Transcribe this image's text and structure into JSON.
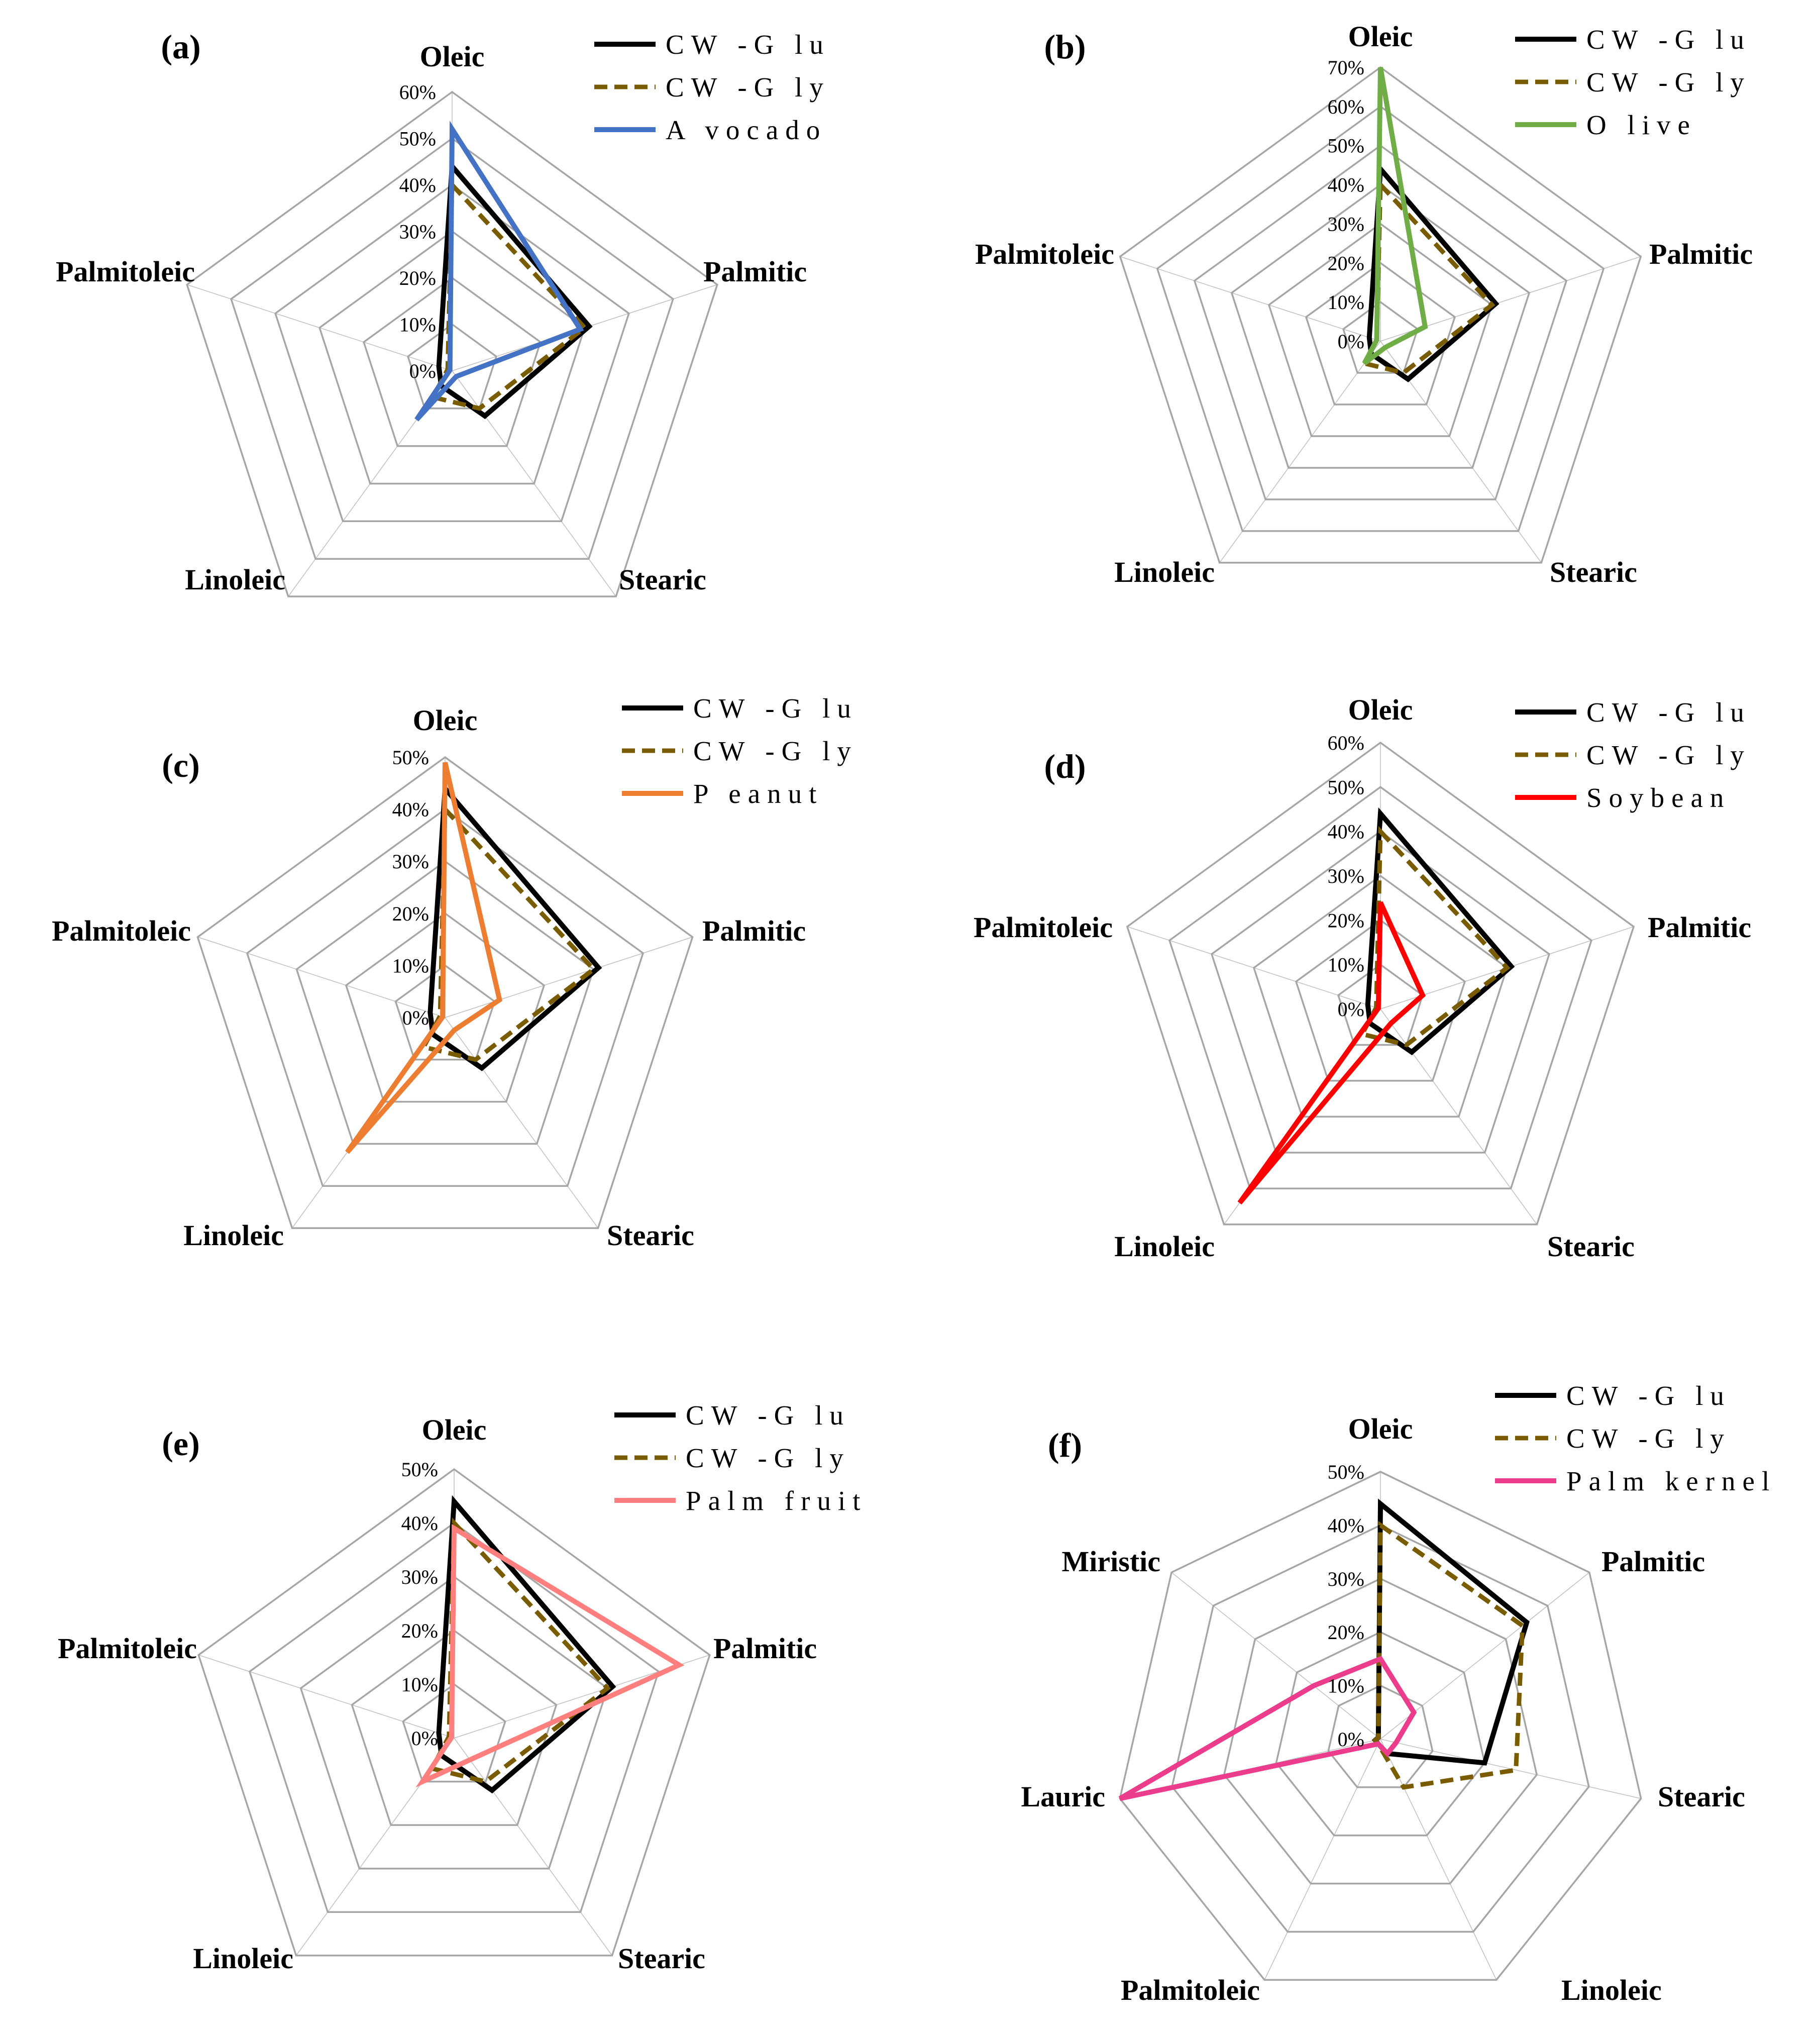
{
  "figure": {
    "panels": [
      {
        "panel_label": "(a)",
        "legend": [
          "CW -G lu",
          "CW -G ly",
          "A vocado"
        ],
        "colors": {
          "CW -G lu": "#000000",
          "CW -G ly": "#7a5c00",
          "A vocado": "#4472c4"
        }
      },
      {
        "panel_label": "(b)",
        "legend": [
          "CW -G lu",
          "CW -G ly",
          "O live"
        ],
        "colors": {
          "CW -G lu": "#000000",
          "CW -G ly": "#7a5c00",
          "O live": "#70ad47"
        }
      },
      {
        "panel_label": "(c)",
        "legend": [
          "CW -G lu",
          "CW -G ly",
          "P eanut"
        ],
        "colors": {
          "CW -G lu": "#000000",
          "CW -G ly": "#7a5c00",
          "P eanut": "#ed7d31"
        }
      },
      {
        "panel_label": "(d)",
        "legend": [
          "CW -G lu",
          "CW -G ly",
          "Soybean"
        ],
        "colors": {
          "CW -G lu": "#000000",
          "CW -G ly": "#7a5c00",
          "Soybean": "#ff0000"
        }
      },
      {
        "panel_label": "(e)",
        "legend": [
          "CW -G lu",
          "CW -G ly",
          "Palm fruit"
        ],
        "colors": {
          "CW -G lu": "#000000",
          "CW -G ly": "#7a5c00",
          "Palm fruit": "#ff7f7f"
        }
      },
      {
        "panel_label": "(f)",
        "legend": [
          "CW -G lu",
          "CW -G ly",
          "Palm kernel"
        ],
        "colors": {
          "CW -G lu": "#000000",
          "CW -G ly": "#7a5c00",
          "Palm kernel": "#ec3c8c"
        }
      }
    ]
  },
  "chart_data": [
    {
      "type": "radar",
      "axes": [
        "Oleic",
        "Palmitic",
        "Stearic",
        "Linoleic",
        "Palmitoleic"
      ],
      "ticks": [
        "0%",
        "10%",
        "20%",
        "30%",
        "40%",
        "50%",
        "60%"
      ],
      "range": [
        0,
        60
      ],
      "series": [
        {
          "name": "CW -G lu",
          "values": [
            44,
            31,
            12,
            4,
            3
          ],
          "style": "solid"
        },
        {
          "name": "CW -G ly",
          "values": [
            40,
            30,
            10,
            7,
            1
          ],
          "style": "dashed"
        },
        {
          "name": "A vocado",
          "values": [
            52,
            29,
            1.5,
            13,
            0.5
          ],
          "style": "solid"
        }
      ]
    },
    {
      "type": "radar",
      "axes": [
        "Oleic",
        "Palmitic",
        "Stearic",
        "Linoleic",
        "Palmitoleic"
      ],
      "ticks": [
        "0%",
        "10%",
        "20%",
        "30%",
        "40%",
        "50%",
        "60%",
        "70%"
      ],
      "range": [
        0,
        70
      ],
      "series": [
        {
          "name": "CW -G lu",
          "values": [
            44,
            31,
            12,
            4,
            3
          ],
          "style": "solid"
        },
        {
          "name": "CW -G ly",
          "values": [
            40,
            30,
            10,
            7,
            1
          ],
          "style": "dashed"
        },
        {
          "name": "O live",
          "values": [
            70,
            12,
            2,
            7,
            1
          ],
          "style": "solid"
        }
      ]
    },
    {
      "type": "radar",
      "axes": [
        "Oleic",
        "Palmitic",
        "Stearic",
        "Linoleic",
        "Palmitoleic"
      ],
      "ticks": [
        "0%",
        "10%",
        "20%",
        "30%",
        "40%",
        "50%"
      ],
      "range": [
        0,
        50
      ],
      "series": [
        {
          "name": "CW -G lu",
          "values": [
            44,
            31,
            12,
            4,
            3
          ],
          "style": "solid"
        },
        {
          "name": "CW -G ly",
          "values": [
            40,
            30,
            10,
            7,
            1
          ],
          "style": "dashed"
        },
        {
          "name": "P eanut",
          "values": [
            49,
            11,
            3,
            32,
            0.5
          ],
          "style": "solid"
        }
      ]
    },
    {
      "type": "radar",
      "axes": [
        "Oleic",
        "Palmitic",
        "Stearic",
        "Linoleic",
        "Palmitoleic"
      ],
      "ticks": [
        "0%",
        "10%",
        "20%",
        "30%",
        "40%",
        "50%",
        "60%"
      ],
      "range": [
        0,
        60
      ],
      "series": [
        {
          "name": "CW -G lu",
          "values": [
            44,
            31,
            12,
            4,
            3
          ],
          "style": "solid"
        },
        {
          "name": "CW -G ly",
          "values": [
            40,
            30,
            10,
            7,
            1
          ],
          "style": "dashed"
        },
        {
          "name": "Soybean",
          "values": [
            24,
            10,
            4,
            54,
            0.5
          ],
          "style": "solid"
        }
      ]
    },
    {
      "type": "radar",
      "axes": [
        "Oleic",
        "Palmitic",
        "Stearic",
        "Linoleic",
        "Palmitoleic"
      ],
      "ticks": [
        "0%",
        "10%",
        "20%",
        "30%",
        "40%",
        "50%"
      ],
      "range": [
        0,
        50
      ],
      "series": [
        {
          "name": "CW -G lu",
          "values": [
            44,
            31,
            12,
            4,
            3
          ],
          "style": "solid"
        },
        {
          "name": "CW -G ly",
          "values": [
            40,
            30,
            10,
            7,
            1
          ],
          "style": "dashed"
        },
        {
          "name": "Palm fruit",
          "values": [
            39,
            44,
            5,
            10,
            0.5
          ],
          "style": "solid"
        }
      ]
    },
    {
      "type": "radar",
      "axes": [
        "Oleic",
        "Palmitic",
        "Stearic",
        "Linoleic",
        "Palmitoleic",
        "Lauric",
        "Miristic"
      ],
      "ticks": [
        "0%",
        "10%",
        "20%",
        "30%",
        "40%",
        "50%"
      ],
      "range": [
        0,
        50
      ],
      "series": [
        {
          "name": "CW -G lu",
          "values": [
            44,
            35,
            20,
            3,
            1,
            1,
            0.5
          ],
          "style": "solid"
        },
        {
          "name": "CW -G ly",
          "values": [
            40,
            34,
            26,
            10,
            1,
            1,
            0.5
          ],
          "style": "dashed"
        },
        {
          "name": "Palm kernel",
          "values": [
            15,
            8,
            3,
            3,
            1,
            50,
            16
          ],
          "style": "solid"
        }
      ]
    }
  ]
}
